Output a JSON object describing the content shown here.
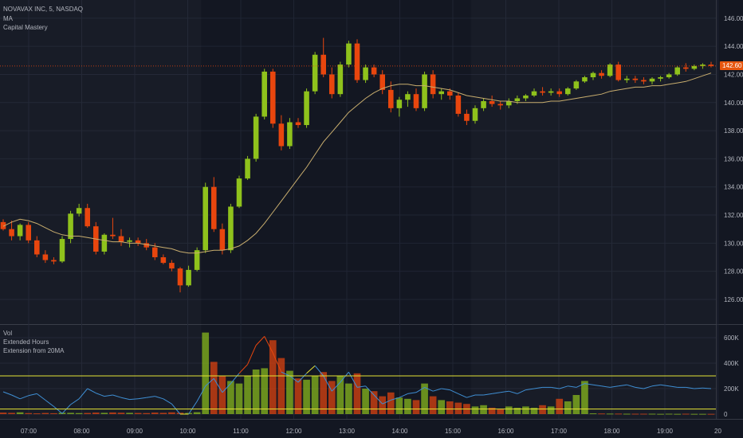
{
  "header": {
    "symbol_line": "NOVAVAX INC, 5, NASDAQ",
    "studies": [
      "MA",
      "Capital Mastery"
    ]
  },
  "lower_pane": {
    "studies": [
      "Vol",
      "Extended Hours",
      "Extension from 20MA"
    ]
  },
  "price_badge": "142.60",
  "colors": {
    "background": "#131722",
    "up": "#8fc21c",
    "down": "#e8460e",
    "ma": "#c8ad6e",
    "extension_line": "#3f8fd4",
    "bands": "#e5e334",
    "grid": "#1f2433"
  },
  "chart_data": [
    {
      "type": "candlestick",
      "title": "NOVAVAX INC, 5, NASDAQ",
      "x_ticks": [
        "07:00",
        "08:00",
        "09:00",
        "10:00",
        "11:00",
        "12:00",
        "13:00",
        "14:00",
        "15:00",
        "16:00",
        "17:00",
        "18:00",
        "19:00",
        "20"
      ],
      "y_ticks": [
        "146.00",
        "144.00",
        "142.00",
        "140.00",
        "138.00",
        "136.00",
        "134.00",
        "132.00",
        "130.00",
        "128.00",
        "126.00"
      ],
      "ylim": [
        125,
        146.5
      ],
      "last_price": 142.6,
      "ohlc": [
        [
          131.5,
          131.7,
          130.9,
          131.0
        ],
        [
          131.0,
          131.6,
          130.2,
          130.5
        ],
        [
          130.5,
          131.4,
          130.2,
          131.3
        ],
        [
          131.3,
          131.5,
          130.0,
          130.2
        ],
        [
          130.2,
          130.5,
          129.0,
          129.2
        ],
        [
          129.2,
          129.5,
          128.6,
          128.8
        ],
        [
          128.8,
          129.0,
          128.5,
          128.7
        ],
        [
          128.7,
          130.5,
          128.6,
          130.3
        ],
        [
          130.3,
          132.3,
          130.0,
          132.1
        ],
        [
          132.1,
          132.8,
          131.9,
          132.5
        ],
        [
          132.5,
          132.8,
          131.1,
          131.2
        ],
        [
          131.2,
          131.5,
          129.2,
          129.4
        ],
        [
          129.4,
          130.7,
          129.2,
          130.6
        ],
        [
          130.6,
          131.8,
          130.3,
          130.5
        ],
        [
          130.5,
          131.0,
          129.8,
          130.1
        ],
        [
          130.1,
          130.4,
          129.7,
          130.2
        ],
        [
          130.2,
          130.4,
          129.8,
          130.0
        ],
        [
          130.0,
          130.3,
          129.5,
          129.7
        ],
        [
          129.7,
          130.0,
          128.8,
          129.0
        ],
        [
          129.0,
          129.2,
          128.5,
          128.6
        ],
        [
          128.6,
          128.8,
          128.0,
          128.2
        ],
        [
          128.2,
          128.3,
          126.5,
          127.0
        ],
        [
          127.0,
          128.4,
          126.9,
          128.1
        ],
        [
          128.1,
          129.7,
          128.0,
          129.5
        ],
        [
          129.5,
          134.3,
          129.3,
          134.0
        ],
        [
          134.0,
          134.7,
          130.8,
          131.0
        ],
        [
          131.0,
          131.4,
          129.2,
          129.5
        ],
        [
          129.5,
          132.8,
          129.3,
          132.6
        ],
        [
          132.6,
          134.8,
          132.5,
          134.6
        ],
        [
          134.6,
          136.2,
          134.5,
          136.0
        ],
        [
          136.0,
          139.2,
          135.8,
          139.0
        ],
        [
          139.0,
          142.4,
          138.8,
          142.2
        ],
        [
          142.2,
          142.4,
          138.2,
          138.5
        ],
        [
          138.5,
          139.1,
          136.6,
          136.9
        ],
        [
          136.9,
          138.9,
          136.7,
          138.6
        ],
        [
          138.6,
          138.9,
          138.2,
          138.4
        ],
        [
          138.4,
          141.0,
          138.2,
          140.8
        ],
        [
          140.8,
          143.6,
          140.6,
          143.4
        ],
        [
          143.4,
          144.6,
          141.8,
          142.0
        ],
        [
          142.0,
          142.5,
          140.3,
          140.6
        ],
        [
          140.6,
          142.9,
          140.4,
          142.7
        ],
        [
          142.7,
          144.4,
          142.5,
          144.2
        ],
        [
          144.2,
          144.5,
          141.4,
          141.6
        ],
        [
          141.6,
          142.7,
          141.4,
          142.5
        ],
        [
          142.5,
          142.7,
          141.8,
          142.0
        ],
        [
          142.0,
          142.3,
          140.6,
          140.9
        ],
        [
          140.9,
          141.5,
          139.3,
          139.6
        ],
        [
          139.6,
          140.4,
          139.0,
          140.2
        ],
        [
          140.2,
          140.8,
          139.7,
          140.6
        ],
        [
          140.6,
          141.0,
          139.4,
          139.6
        ],
        [
          139.6,
          142.2,
          139.4,
          142.0
        ],
        [
          142.0,
          142.3,
          140.3,
          140.6
        ],
        [
          140.6,
          141.0,
          140.2,
          140.8
        ],
        [
          140.8,
          141.0,
          140.2,
          140.5
        ],
        [
          140.5,
          140.7,
          139.0,
          139.2
        ],
        [
          139.2,
          139.5,
          138.4,
          138.7
        ],
        [
          138.7,
          139.8,
          138.5,
          139.6
        ],
        [
          139.6,
          140.3,
          139.4,
          140.1
        ],
        [
          140.1,
          140.5,
          139.7,
          139.9
        ],
        [
          139.9,
          140.1,
          139.5,
          139.8
        ],
        [
          139.8,
          140.3,
          139.6,
          140.1
        ],
        [
          140.1,
          140.5,
          139.9,
          140.3
        ],
        [
          140.3,
          140.6,
          140.1,
          140.5
        ],
        [
          140.5,
          141.0,
          140.4,
          140.8
        ],
        [
          140.8,
          141.1,
          140.5,
          140.7
        ],
        [
          140.7,
          141.0,
          140.5,
          140.8
        ],
        [
          140.8,
          141.0,
          140.4,
          140.6
        ],
        [
          140.6,
          141.1,
          140.5,
          141.0
        ],
        [
          141.0,
          141.6,
          140.9,
          141.5
        ],
        [
          141.5,
          141.9,
          141.4,
          141.8
        ],
        [
          141.8,
          142.2,
          141.6,
          142.1
        ],
        [
          142.1,
          142.3,
          141.7,
          141.9
        ],
        [
          141.9,
          142.8,
          141.8,
          142.7
        ],
        [
          142.7,
          142.9,
          141.5,
          141.6
        ],
        [
          141.6,
          141.9,
          141.4,
          141.7
        ],
        [
          141.7,
          141.9,
          141.4,
          141.6
        ],
        [
          141.6,
          141.8,
          141.3,
          141.5
        ],
        [
          141.5,
          141.8,
          141.3,
          141.7
        ],
        [
          141.7,
          141.9,
          141.5,
          141.8
        ],
        [
          141.8,
          142.1,
          141.7,
          142.0
        ],
        [
          142.0,
          142.6,
          141.9,
          142.5
        ],
        [
          142.5,
          142.8,
          142.2,
          142.4
        ],
        [
          142.4,
          142.7,
          142.3,
          142.6
        ],
        [
          142.6,
          142.8,
          142.4,
          142.7
        ],
        [
          142.7,
          142.9,
          142.5,
          142.6
        ]
      ],
      "ma": [
        131.2,
        131.5,
        131.7,
        131.6,
        131.4,
        131.1,
        130.8,
        130.6,
        130.5,
        130.5,
        130.4,
        130.3,
        130.2,
        130.1,
        130.1,
        130.0,
        130.0,
        129.9,
        129.8,
        129.7,
        129.6,
        129.4,
        129.3,
        129.3,
        129.4,
        129.5,
        129.5,
        129.6,
        129.8,
        130.2,
        130.7,
        131.4,
        132.2,
        133.0,
        133.8,
        134.6,
        135.4,
        136.3,
        137.2,
        137.9,
        138.6,
        139.3,
        139.8,
        140.3,
        140.7,
        141.0,
        141.2,
        141.3,
        141.3,
        141.2,
        141.2,
        141.1,
        141.0,
        140.9,
        140.7,
        140.5,
        140.4,
        140.3,
        140.2,
        140.1,
        140.1,
        140.0,
        140.0,
        140.0,
        140.0,
        140.1,
        140.1,
        140.2,
        140.3,
        140.4,
        140.5,
        140.6,
        140.8,
        140.9,
        141.0,
        141.1,
        141.1,
        141.2,
        141.2,
        141.3,
        141.4,
        141.5,
        141.7,
        141.9,
        142.1
      ]
    },
    {
      "type": "bar",
      "title": "Vol",
      "y_ticks": [
        "600K",
        "400K",
        "200K",
        "0"
      ],
      "ylim": [
        0,
        650000
      ],
      "volume": [
        12000,
        10000,
        14000,
        8000,
        6000,
        9000,
        7000,
        11000,
        10000,
        8000,
        9000,
        12000,
        10000,
        13000,
        11000,
        10000,
        9000,
        8000,
        12000,
        10000,
        14000,
        11000,
        9000,
        15000,
        640000,
        410000,
        300000,
        260000,
        240000,
        300000,
        350000,
        360000,
        580000,
        440000,
        340000,
        280000,
        270000,
        300000,
        330000,
        260000,
        300000,
        240000,
        320000,
        200000,
        180000,
        140000,
        170000,
        130000,
        120000,
        110000,
        240000,
        140000,
        110000,
        100000,
        90000,
        80000,
        60000,
        70000,
        50000,
        40000,
        60000,
        50000,
        60000,
        50000,
        70000,
        60000,
        120000,
        100000,
        150000,
        260000,
        6000,
        5000,
        4000,
        4000,
        3000,
        3000,
        3000,
        3000,
        2000,
        3000,
        2000,
        3000,
        2000,
        2000,
        2000
      ],
      "band_levels": [
        300000,
        40000
      ],
      "extension_from_20ma": [
        175000,
        150000,
        120000,
        145000,
        160000,
        110000,
        60000,
        5000,
        75000,
        120000,
        200000,
        165000,
        140000,
        150000,
        130000,
        115000,
        120000,
        130000,
        140000,
        120000,
        80000,
        0,
        0,
        100000,
        220000,
        280000,
        170000,
        240000,
        320000,
        390000,
        540000,
        610000,
        480000,
        330000,
        300000,
        250000,
        320000,
        380000,
        300000,
        180000,
        250000,
        330000,
        210000,
        220000,
        150000,
        80000,
        110000,
        130000,
        160000,
        170000,
        210000,
        180000,
        200000,
        190000,
        160000,
        130000,
        150000,
        150000,
        160000,
        170000,
        180000,
        160000,
        190000,
        200000,
        210000,
        210000,
        200000,
        220000,
        210000,
        240000,
        230000,
        220000,
        210000,
        220000,
        230000,
        210000,
        200000,
        220000,
        230000,
        220000,
        210000,
        210000,
        200000,
        205000,
        200000
      ]
    }
  ]
}
